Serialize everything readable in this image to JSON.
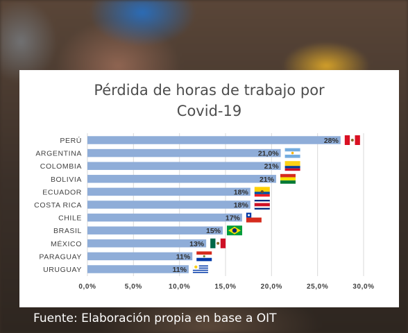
{
  "chart_data": {
    "type": "bar",
    "orientation": "horizontal",
    "title_lines": [
      "Pérdida de horas de trabajo por",
      "Covid-19"
    ],
    "categories": [
      "PERÚ",
      "ARGENTINA",
      "COLOMBIA",
      "BOLIVIA",
      "ECUADOR",
      "COSTA RICA",
      "CHILE",
      "BRASIL",
      "MÉXICO",
      "PARAGUAY",
      "URUGUAY"
    ],
    "values": [
      27.5,
      21.0,
      21.0,
      20.5,
      17.7,
      17.7,
      16.8,
      14.7,
      12.9,
      11.4,
      11.0
    ],
    "data_labels": [
      "28%",
      "21,0%",
      "21%",
      "21%",
      "18%",
      "18%",
      "17%",
      "15%",
      "13%",
      "11%",
      "11%"
    ],
    "flags": [
      "peru-flag",
      "argentina-flag",
      "colombia-flag",
      "bolivia-flag",
      "ecuador-flag",
      "costa-rica-flag",
      "chile-flag",
      "brazil-flag",
      "mexico-flag",
      "paraguay-flag",
      "uruguay-flag"
    ],
    "x_ticks": [
      "0,0%",
      "5,0%",
      "10,0%",
      "15,0%",
      "20,0%",
      "25,0%",
      "30,0%"
    ],
    "xlim": [
      0,
      30
    ],
    "grid": true,
    "bar_color": "#8fadd8",
    "xlabel": "",
    "ylabel": ""
  },
  "footer": {
    "source": "Fuente: Elaboración propia en base a OIT"
  }
}
